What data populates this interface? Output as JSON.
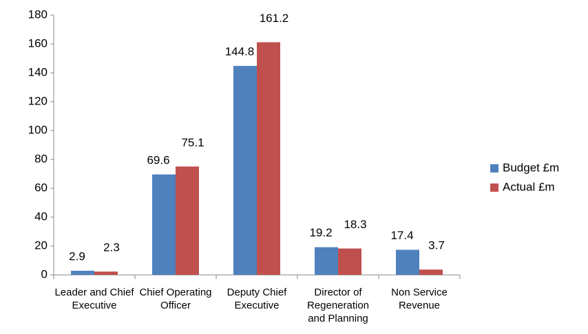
{
  "chart_data": {
    "type": "bar",
    "categories": [
      "Leader and Chief Executive",
      "Chief Operating Officer",
      "Deputy Chief Executive",
      "Director of Regeneration and Planning",
      "Non Service Revenue"
    ],
    "series": [
      {
        "name": "Budget £m",
        "color": "#4f81bd",
        "values": [
          2.9,
          69.6,
          144.8,
          19.2,
          17.4
        ]
      },
      {
        "name": "Actual £m",
        "color": "#c0504d",
        "values": [
          2.3,
          75.1,
          161.2,
          18.3,
          3.7
        ]
      }
    ],
    "ylim": [
      0,
      180
    ],
    "yticks": [
      0,
      20,
      40,
      60,
      80,
      100,
      120,
      140,
      160,
      180
    ],
    "grid": false,
    "legend": "right"
  }
}
